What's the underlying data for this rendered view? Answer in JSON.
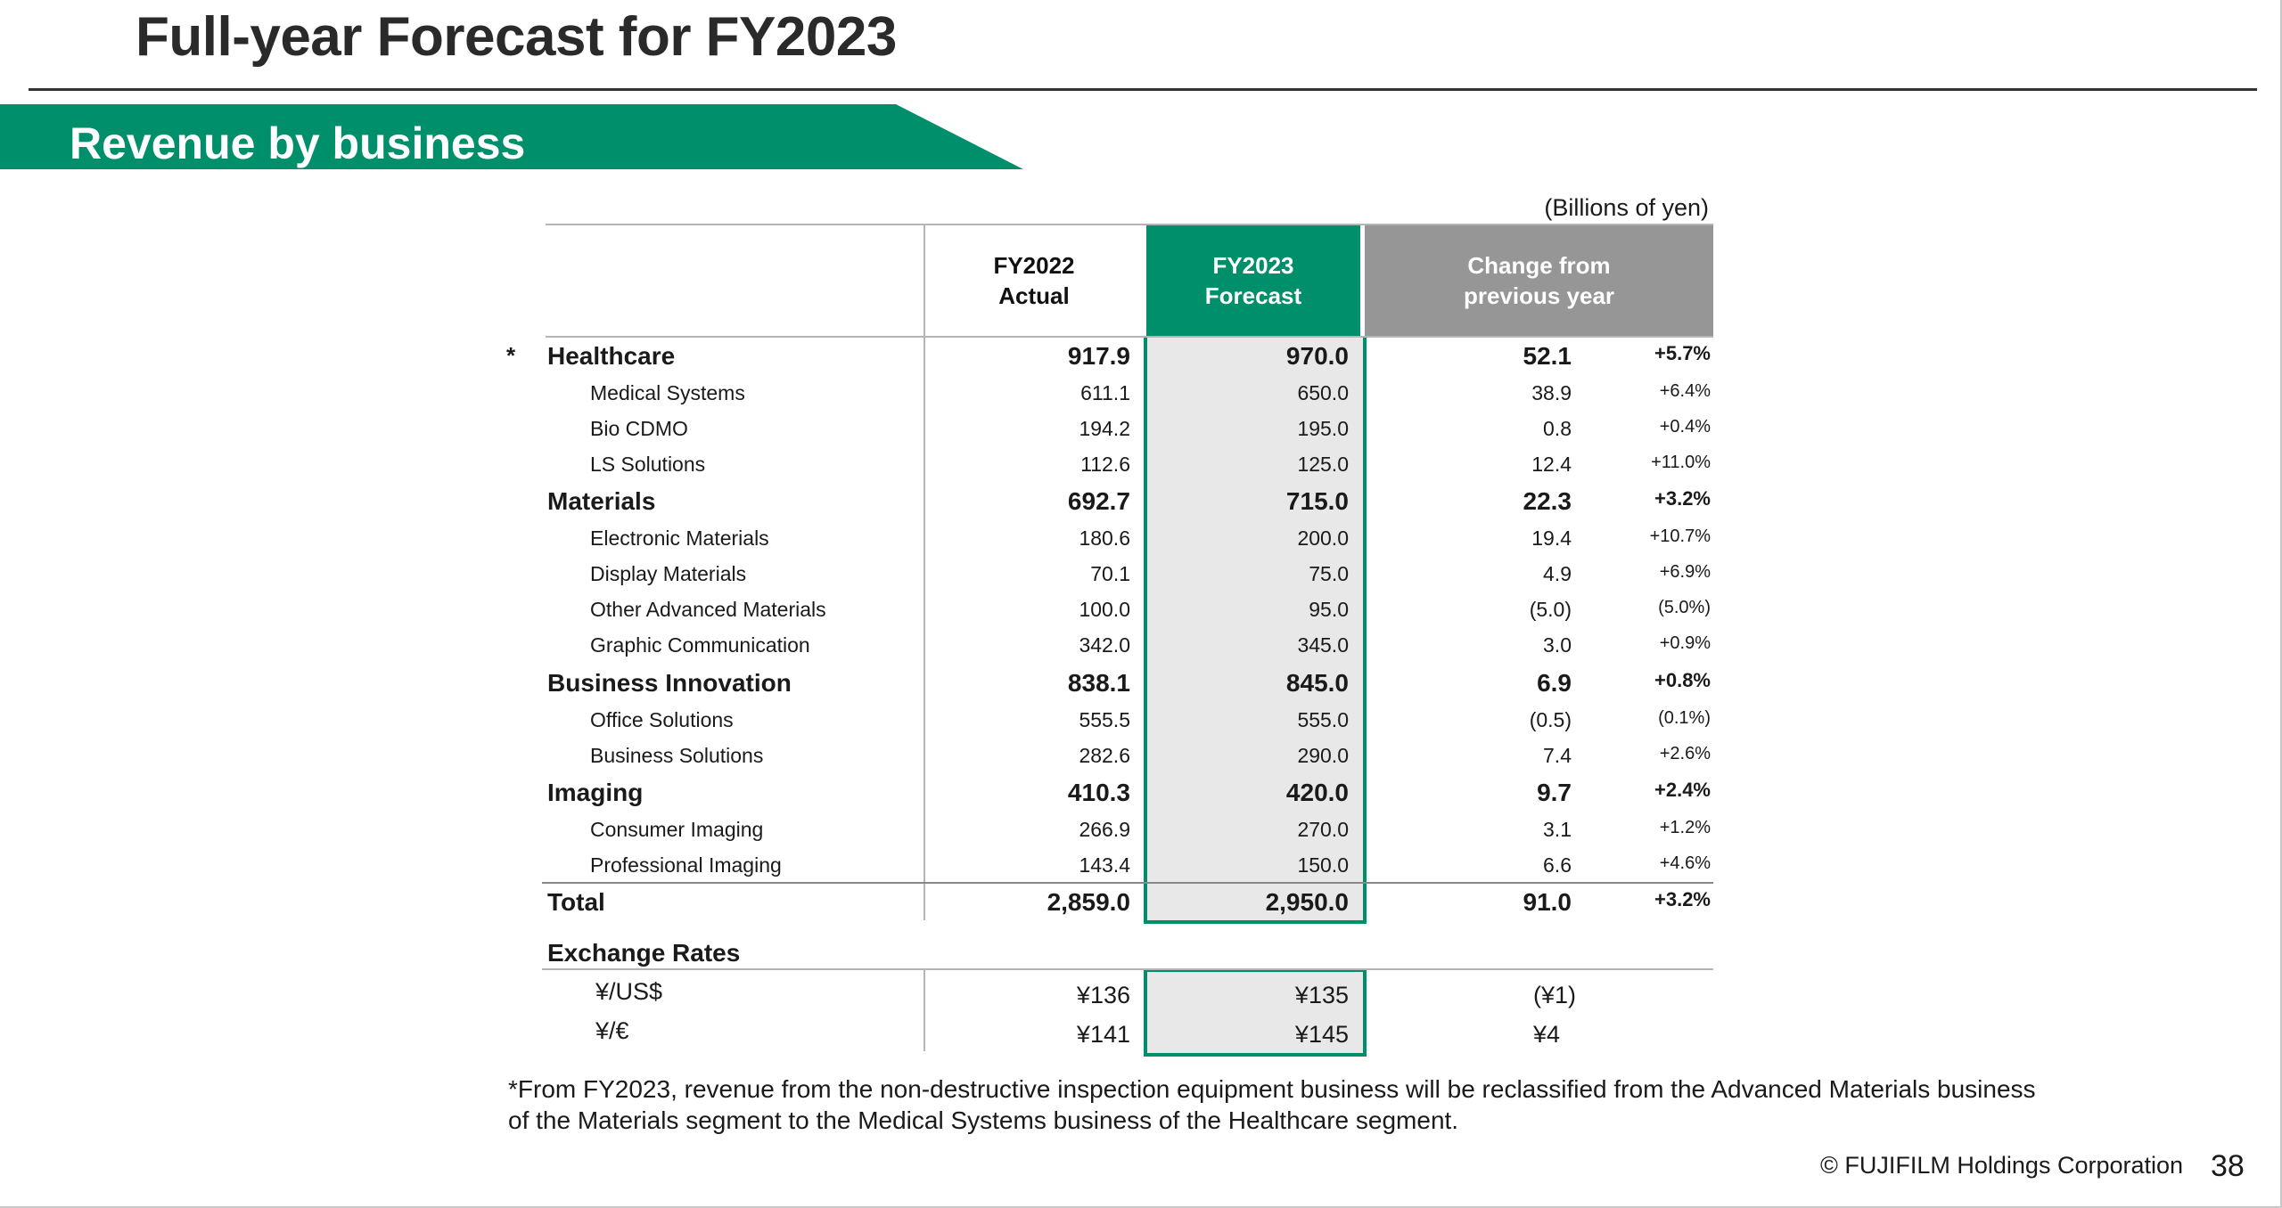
{
  "title": "Full-year Forecast for FY2023",
  "banner": "Revenue by business",
  "units": "(Billions of yen)",
  "headers": {
    "fy2022": "FY2022\nActual",
    "fy2023": "FY2023\nForecast",
    "change": "Change  from\nprevious year"
  },
  "rows": [
    {
      "star": "*",
      "label": "Healthcare",
      "fy2022": "917.9",
      "fy2023": "970.0",
      "change": "52.1",
      "pct": "+5.7%"
    },
    {
      "label": "Medical Systems",
      "fy2022": "611.1",
      "fy2023": "650.0",
      "change": "38.9",
      "pct": "+6.4%"
    },
    {
      "label": "Bio CDMO",
      "fy2022": "194.2",
      "fy2023": "195.0",
      "change": "0.8",
      "pct": "+0.4%"
    },
    {
      "label": "LS Solutions",
      "fy2022": "112.6",
      "fy2023": "125.0",
      "change": "12.4",
      "pct": "+11.0%"
    },
    {
      "label": "Materials",
      "fy2022": "692.7",
      "fy2023": "715.0",
      "change": "22.3",
      "pct": "+3.2%"
    },
    {
      "label": "Electronic Materials",
      "fy2022": "180.6",
      "fy2023": "200.0",
      "change": "19.4",
      "pct": "+10.7%"
    },
    {
      "label": "Display Materials",
      "fy2022": "70.1",
      "fy2023": "75.0",
      "change": "4.9",
      "pct": "+6.9%"
    },
    {
      "label": "Other Advanced Materials",
      "fy2022": "100.0",
      "fy2023": "95.0",
      "change": "(5.0)",
      "pct": "(5.0%)"
    },
    {
      "label": "Graphic Communication",
      "fy2022": "342.0",
      "fy2023": "345.0",
      "change": "3.0",
      "pct": "+0.9%"
    },
    {
      "label": "Business Innovation",
      "fy2022": "838.1",
      "fy2023": "845.0",
      "change": "6.9",
      "pct": "+0.8%"
    },
    {
      "label": "Office Solutions",
      "fy2022": "555.5",
      "fy2023": "555.0",
      "change": "(0.5)",
      "pct": "(0.1%)"
    },
    {
      "label": "Business Solutions",
      "fy2022": "282.6",
      "fy2023": "290.0",
      "change": "7.4",
      "pct": "+2.6%"
    },
    {
      "label": "Imaging",
      "fy2022": "410.3",
      "fy2023": "420.0",
      "change": "9.7",
      "pct": "+2.4%"
    },
    {
      "label": "Consumer Imaging",
      "fy2022": "266.9",
      "fy2023": "270.0",
      "change": "3.1",
      "pct": "+1.2%"
    },
    {
      "label": "Professional Imaging",
      "fy2022": "143.4",
      "fy2023": "150.0",
      "change": "6.6",
      "pct": "+4.6%"
    },
    {
      "label": "Total",
      "fy2022": "2,859.0",
      "fy2023": "2,950.0",
      "change": "91.0",
      "pct": "+3.2%"
    }
  ],
  "exchange": {
    "title": "Exchange Rates",
    "rows": [
      {
        "label": "¥/US$",
        "fy2022": "¥136",
        "fy2023": "¥135",
        "change": "(¥1)"
      },
      {
        "label": "¥/€",
        "fy2022": "¥141",
        "fy2023": "¥145",
        "change": "¥4"
      }
    ]
  },
  "footnote_line1": "*From FY2023, revenue from the non-destructive inspection equipment business will be reclassified from the Advanced Materials business",
  "footnote_line2": "of the Materials segment to the Medical Systems business of the Healthcare segment.",
  "copyright": "© FUJIFILM Holdings Corporation",
  "page_number": "38",
  "colors": {
    "accent": "#008f6b",
    "header_gray": "#969696",
    "forecast_fill": "#e8e8e8"
  }
}
